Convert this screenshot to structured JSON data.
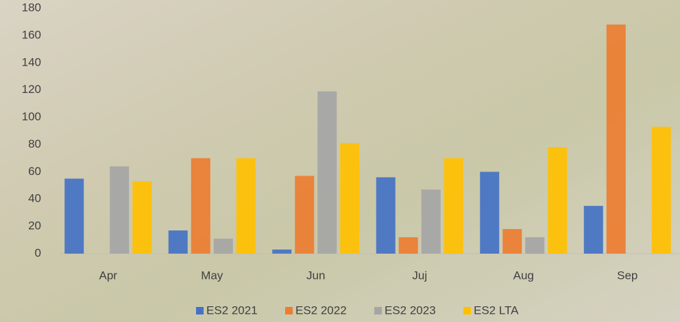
{
  "chart_data": {
    "type": "bar",
    "categories": [
      "Apr",
      "May",
      "Jun",
      "Juj",
      "Aug",
      "Sep"
    ],
    "series": [
      {
        "name": "ES2 2021",
        "color": "#4472c4",
        "values": [
          55,
          17,
          3,
          56,
          60,
          35
        ]
      },
      {
        "name": "ES2 2022",
        "color": "#ed7d31",
        "values": [
          0,
          70,
          57,
          12,
          18,
          168
        ]
      },
      {
        "name": "ES2 2023",
        "color": "#a5a5a5",
        "values": [
          64,
          11,
          119,
          47,
          12,
          0
        ]
      },
      {
        "name": "ES2 LTA",
        "color": "#ffc000",
        "values": [
          53,
          70,
          81,
          70,
          78,
          93
        ]
      }
    ],
    "ylim": [
      0,
      180
    ],
    "yticks": [
      0,
      20,
      40,
      60,
      80,
      100,
      120,
      140,
      160,
      180
    ],
    "legend": "bottom"
  }
}
